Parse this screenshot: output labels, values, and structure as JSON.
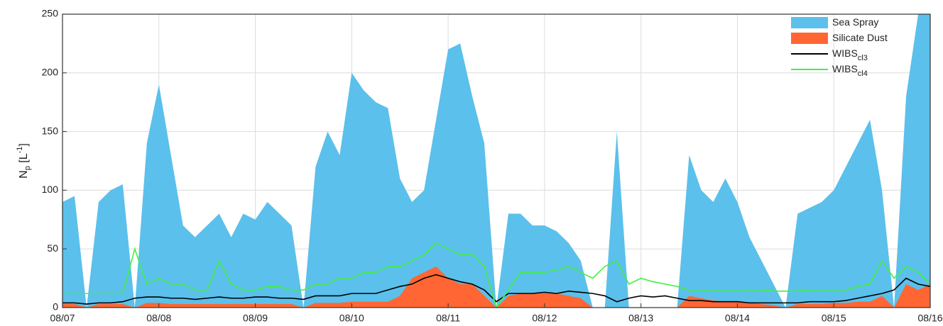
{
  "chart_data": {
    "type": "area",
    "ylabel": {
      "main": "N",
      "sub": "p",
      "mid": " [L",
      "sup": "-1",
      "end": "]"
    },
    "x": [
      0,
      0.125,
      0.25,
      0.375,
      0.5,
      0.625,
      0.75,
      0.875,
      1,
      1.125,
      1.25,
      1.375,
      1.5,
      1.625,
      1.75,
      1.875,
      2,
      2.125,
      2.25,
      2.375,
      2.5,
      2.625,
      2.75,
      2.875,
      3,
      3.125,
      3.25,
      3.375,
      3.5,
      3.625,
      3.75,
      3.875,
      4,
      4.125,
      4.25,
      4.375,
      4.5,
      4.625,
      4.75,
      4.875,
      5,
      5.125,
      5.25,
      5.375,
      5.5,
      5.625,
      5.75,
      5.875,
      6,
      6.125,
      6.25,
      6.375,
      6.5,
      6.625,
      6.75,
      6.875,
      7,
      7.125,
      7.25,
      7.375,
      7.5,
      7.625,
      7.75,
      7.875,
      8,
      8.125,
      8.25,
      8.375,
      8.5,
      8.625,
      8.75,
      8.875,
      9
    ],
    "series": [
      {
        "name": "Sea Spray",
        "kind": "area",
        "color": "#5bc0eb",
        "values": [
          90,
          95,
          0,
          90,
          100,
          105,
          0,
          140,
          190,
          130,
          70,
          60,
          70,
          80,
          60,
          80,
          75,
          90,
          80,
          70,
          0,
          120,
          150,
          130,
          200,
          185,
          175,
          170,
          110,
          90,
          100,
          160,
          220,
          225,
          180,
          140,
          0,
          80,
          80,
          70,
          70,
          65,
          55,
          40,
          0,
          0,
          150,
          0,
          0,
          0,
          0,
          0,
          130,
          100,
          90,
          110,
          90,
          60,
          40,
          20,
          0,
          80,
          85,
          90,
          100,
          120,
          140,
          160,
          100,
          0,
          180,
          250,
          250
        ]
      },
      {
        "name": "Silicate Dust",
        "kind": "area",
        "color": "#ff6633",
        "values": [
          3,
          3,
          0,
          3,
          3,
          3,
          0,
          4,
          4,
          3,
          3,
          3,
          3,
          3,
          3,
          3,
          3,
          3,
          3,
          3,
          0,
          4,
          4,
          4,
          5,
          5,
          5,
          5,
          10,
          25,
          30,
          35,
          25,
          20,
          20,
          10,
          0,
          10,
          12,
          12,
          12,
          12,
          10,
          8,
          0,
          0,
          0,
          0,
          0,
          0,
          0,
          0,
          10,
          8,
          6,
          5,
          5,
          4,
          3,
          2,
          0,
          3,
          3,
          3,
          4,
          4,
          5,
          5,
          10,
          0,
          20,
          15,
          20
        ]
      },
      {
        "name": "WIBS",
        "name_sub": "cl3",
        "kind": "line",
        "color": "#000000",
        "values": [
          4,
          4,
          3,
          4,
          4,
          5,
          8,
          9,
          9,
          8,
          8,
          7,
          8,
          9,
          8,
          8,
          9,
          9,
          8,
          8,
          7,
          10,
          10,
          10,
          12,
          12,
          12,
          15,
          18,
          20,
          25,
          28,
          25,
          22,
          20,
          15,
          5,
          12,
          12,
          12,
          13,
          12,
          14,
          13,
          12,
          10,
          5,
          8,
          10,
          9,
          10,
          8,
          6,
          6,
          5,
          5,
          5,
          4,
          4,
          4,
          4,
          4,
          5,
          5,
          5,
          6,
          8,
          10,
          12,
          15,
          25,
          20,
          18
        ]
      },
      {
        "name": "WIBS",
        "name_sub": "cl4",
        "kind": "line",
        "color": "#44ee44",
        "values": [
          12,
          12,
          12,
          12,
          12,
          12,
          50,
          20,
          25,
          20,
          20,
          15,
          15,
          40,
          20,
          15,
          15,
          18,
          18,
          15,
          15,
          20,
          20,
          25,
          25,
          30,
          30,
          35,
          35,
          40,
          45,
          55,
          50,
          45,
          45,
          35,
          0,
          15,
          30,
          30,
          30,
          32,
          35,
          30,
          25,
          35,
          40,
          20,
          25,
          22,
          20,
          18,
          15,
          15,
          15,
          15,
          15,
          15,
          15,
          14,
          14,
          14,
          15,
          15,
          15,
          15,
          18,
          20,
          40,
          25,
          35,
          30,
          20
        ]
      }
    ],
    "xlim": [
      0,
      9
    ],
    "xticks": [
      {
        "value": 0,
        "label": "08/07"
      },
      {
        "value": 1,
        "label": "08/08"
      },
      {
        "value": 2,
        "label": "08/09"
      },
      {
        "value": 3,
        "label": "08/10"
      },
      {
        "value": 4,
        "label": "08/11"
      },
      {
        "value": 5,
        "label": "08/12"
      },
      {
        "value": 6,
        "label": "08/13"
      },
      {
        "value": 7,
        "label": "08/14"
      },
      {
        "value": 8,
        "label": "08/15"
      },
      {
        "value": 9,
        "label": "08/16"
      }
    ],
    "ylim": [
      0,
      250
    ],
    "yticks": [
      0,
      50,
      100,
      150,
      200,
      250
    ],
    "grid": true,
    "legend": "top-right"
  }
}
